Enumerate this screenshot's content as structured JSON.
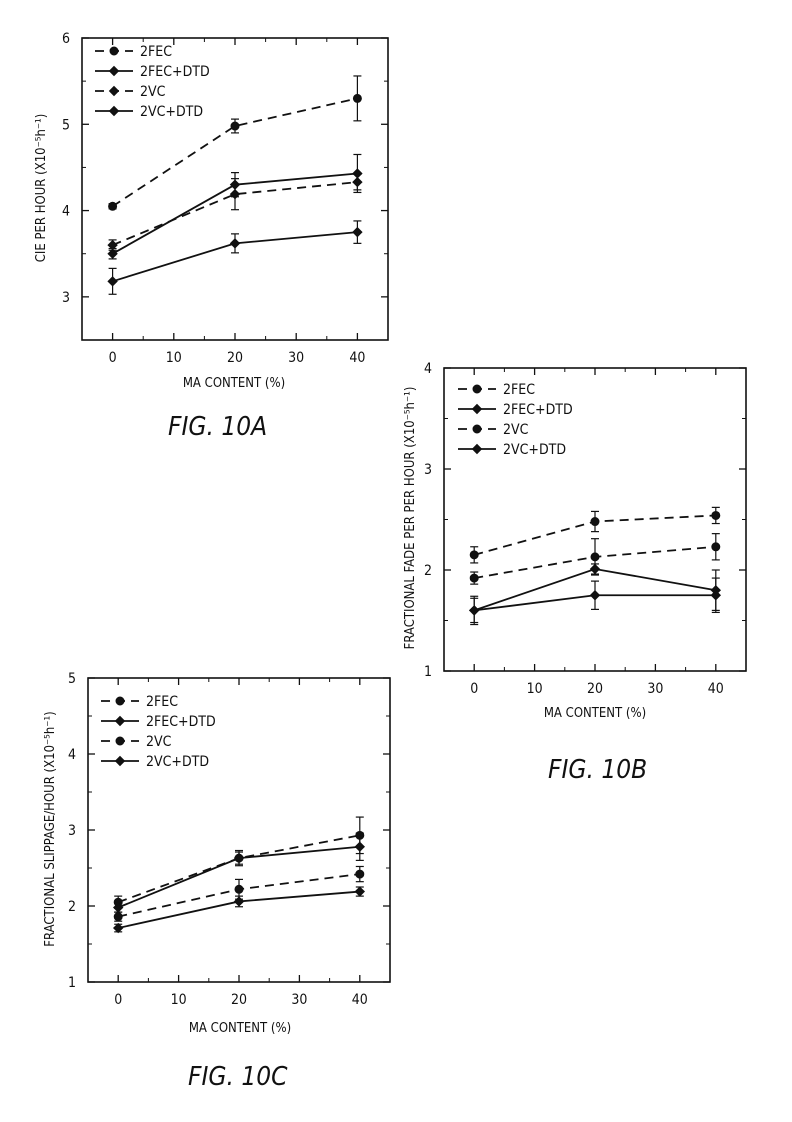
{
  "chart_data": [
    {
      "type": "line",
      "caption": "FIG. 10A",
      "xlabel": "MA CONTENT (%)",
      "ylabel": "CIE PER HOUR (X10⁻⁵h⁻¹)",
      "xlim": [
        -5,
        45
      ],
      "ylim": [
        2.5,
        6
      ],
      "xticks": [
        0,
        10,
        20,
        30,
        40
      ],
      "yticks": [
        3,
        4,
        5,
        6
      ],
      "legend_position": "top-left",
      "series": [
        {
          "name": "2FEC",
          "dash": "dashed",
          "marker": "circle",
          "x": [
            0,
            20,
            40
          ],
          "y": [
            4.05,
            4.98,
            5.3
          ],
          "err": [
            0.03,
            0.08,
            0.26
          ]
        },
        {
          "name": "2FEC+DTD",
          "dash": "solid",
          "marker": "diamond",
          "x": [
            0,
            20,
            40
          ],
          "y": [
            3.5,
            4.3,
            4.43
          ],
          "err": [
            0.06,
            0.14,
            0.22
          ]
        },
        {
          "name": "2VC",
          "dash": "dashed",
          "marker": "diamond",
          "x": [
            0,
            20,
            40
          ],
          "y": [
            3.6,
            4.19,
            4.33
          ],
          "err": [
            0.06,
            0.18,
            0.09
          ]
        },
        {
          "name": "2VC+DTD",
          "dash": "solid",
          "marker": "diamond",
          "x": [
            0,
            20,
            40
          ],
          "y": [
            3.18,
            3.62,
            3.75
          ],
          "err": [
            0.15,
            0.11,
            0.13
          ]
        }
      ]
    },
    {
      "type": "line",
      "caption": "FIG. 10B",
      "xlabel": "MA CONTENT (%)",
      "ylabel": "FRACTIONAL FADE PER PER HOUR (X10⁻⁵h⁻¹)",
      "xlim": [
        -5,
        45
      ],
      "ylim": [
        1,
        4
      ],
      "xticks": [
        0,
        10,
        20,
        30,
        40
      ],
      "yticks": [
        1,
        2,
        3,
        4
      ],
      "legend_position": "top-left",
      "series": [
        {
          "name": "2FEC",
          "dash": "dashed",
          "marker": "circle",
          "x": [
            0,
            20,
            40
          ],
          "y": [
            2.15,
            2.48,
            2.54
          ],
          "err": [
            0.08,
            0.1,
            0.08
          ]
        },
        {
          "name": "2FEC+DTD",
          "dash": "solid",
          "marker": "diamond",
          "x": [
            0,
            20,
            40
          ],
          "y": [
            1.6,
            1.75,
            1.75
          ],
          "err": [
            0.12,
            0.14,
            0.17
          ]
        },
        {
          "name": "2VC",
          "dash": "dashed",
          "marker": "circle",
          "x": [
            0,
            20,
            40
          ],
          "y": [
            1.92,
            2.13,
            2.23
          ],
          "err": [
            0.06,
            0.18,
            0.13
          ]
        },
        {
          "name": "2VC+DTD",
          "dash": "solid",
          "marker": "diamond",
          "x": [
            0,
            20,
            40
          ],
          "y": [
            1.6,
            2.01,
            1.8
          ],
          "err": [
            0.14,
            0.05,
            0.2
          ]
        }
      ]
    },
    {
      "type": "line",
      "caption": "FIG. 10C",
      "xlabel": "MA CONTENT (%)",
      "ylabel": "FRACTIONAL SLIPPAGE/HOUR (X10⁻⁵h⁻¹)",
      "xlim": [
        -5,
        45
      ],
      "ylim": [
        1,
        5
      ],
      "xticks": [
        0,
        10,
        20,
        30,
        40
      ],
      "yticks": [
        1,
        2,
        3,
        4,
        5
      ],
      "legend_position": "top-left",
      "series": [
        {
          "name": "2FEC",
          "dash": "dashed",
          "marker": "circle",
          "x": [
            0,
            20,
            40
          ],
          "y": [
            2.05,
            2.63,
            2.93
          ],
          "err": [
            0.08,
            0.1,
            0.24
          ]
        },
        {
          "name": "2FEC+DTD",
          "dash": "solid",
          "marker": "diamond",
          "x": [
            0,
            20,
            40
          ],
          "y": [
            1.98,
            2.63,
            2.78
          ],
          "err": [
            0.06,
            0.08,
            0.18
          ]
        },
        {
          "name": "2VC",
          "dash": "dashed",
          "marker": "circle",
          "x": [
            0,
            20,
            40
          ],
          "y": [
            1.86,
            2.22,
            2.42
          ],
          "err": [
            0.06,
            0.13,
            0.1
          ]
        },
        {
          "name": "2VC+DTD",
          "dash": "solid",
          "marker": "diamond",
          "x": [
            0,
            20,
            40
          ],
          "y": [
            1.71,
            2.06,
            2.19
          ],
          "err": [
            0.05,
            0.07,
            0.06
          ]
        }
      ]
    }
  ]
}
